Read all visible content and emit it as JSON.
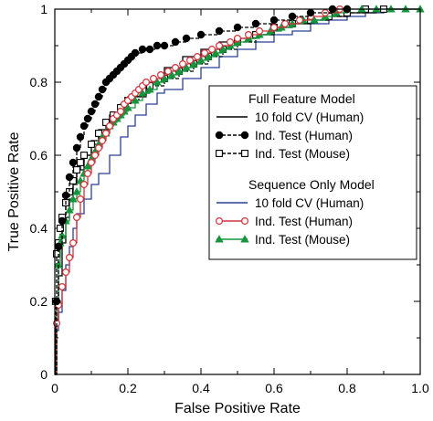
{
  "chart_data": {
    "type": "line",
    "xlabel": "False Positive Rate",
    "ylabel": "True Positive Rate",
    "xlim": [
      0,
      1
    ],
    "ylim": [
      0,
      1
    ],
    "x_ticks": [
      "0",
      "0.2",
      "0.4",
      "0.6",
      "0.8",
      "1.0"
    ],
    "y_ticks": [
      "0",
      "0.2",
      "0.4",
      "0.6",
      "0.8",
      "1"
    ],
    "grid": false,
    "legend_position": "center-right",
    "legend_groups": [
      {
        "heading": "Full Feature Model",
        "entries": [
          0,
          1,
          2
        ]
      },
      {
        "heading": "Sequence Only Model",
        "entries": [
          3,
          4,
          5
        ]
      }
    ],
    "series": [
      {
        "name": "10 fold CV (Human)",
        "color": "#000000",
        "marker": "none",
        "dash": "solid",
        "points": [
          [
            0,
            0
          ],
          [
            0.003,
            0.15
          ],
          [
            0.01,
            0.27
          ],
          [
            0.02,
            0.36
          ],
          [
            0.03,
            0.43
          ],
          [
            0.04,
            0.48
          ],
          [
            0.05,
            0.52
          ],
          [
            0.06,
            0.56
          ],
          [
            0.08,
            0.6
          ],
          [
            0.1,
            0.64
          ],
          [
            0.12,
            0.67
          ],
          [
            0.15,
            0.71
          ],
          [
            0.18,
            0.74
          ],
          [
            0.2,
            0.76
          ],
          [
            0.25,
            0.8
          ],
          [
            0.3,
            0.84
          ],
          [
            0.35,
            0.87
          ],
          [
            0.4,
            0.89
          ],
          [
            0.45,
            0.91
          ],
          [
            0.5,
            0.92
          ],
          [
            0.55,
            0.93
          ],
          [
            0.6,
            0.95
          ],
          [
            0.65,
            0.96
          ],
          [
            0.7,
            0.97
          ],
          [
            0.75,
            0.98
          ],
          [
            0.8,
            0.99
          ],
          [
            0.88,
            1
          ],
          [
            1,
            1
          ]
        ]
      },
      {
        "name": "Ind. Test (Human)",
        "color": "#000000",
        "marker": "filled-circle",
        "dash": "dashed",
        "points": [
          [
            0,
            0
          ],
          [
            0.005,
            0.2
          ],
          [
            0.01,
            0.35
          ],
          [
            0.02,
            0.42
          ],
          [
            0.03,
            0.49
          ],
          [
            0.04,
            0.54
          ],
          [
            0.05,
            0.58
          ],
          [
            0.06,
            0.62
          ],
          [
            0.07,
            0.65
          ],
          [
            0.08,
            0.68
          ],
          [
            0.09,
            0.7
          ],
          [
            0.1,
            0.72
          ],
          [
            0.11,
            0.74
          ],
          [
            0.12,
            0.76
          ],
          [
            0.13,
            0.78
          ],
          [
            0.14,
            0.8
          ],
          [
            0.15,
            0.81
          ],
          [
            0.16,
            0.82
          ],
          [
            0.17,
            0.83
          ],
          [
            0.18,
            0.84
          ],
          [
            0.19,
            0.85
          ],
          [
            0.2,
            0.86
          ],
          [
            0.21,
            0.87
          ],
          [
            0.22,
            0.88
          ],
          [
            0.24,
            0.89
          ],
          [
            0.26,
            0.89
          ],
          [
            0.28,
            0.9
          ],
          [
            0.3,
            0.9
          ],
          [
            0.33,
            0.91
          ],
          [
            0.36,
            0.92
          ],
          [
            0.4,
            0.93
          ],
          [
            0.45,
            0.94
          ],
          [
            0.5,
            0.95
          ],
          [
            0.55,
            0.96
          ],
          [
            0.6,
            0.97
          ],
          [
            0.65,
            0.98
          ],
          [
            0.7,
            0.99
          ],
          [
            0.76,
            1
          ],
          [
            0.8,
            1
          ]
        ]
      },
      {
        "name": "Ind. Test (Mouse)",
        "color": "#000000",
        "marker": "open-square",
        "dash": "dashed",
        "points": [
          [
            0,
            0
          ],
          [
            0.002,
            0.2
          ],
          [
            0.005,
            0.33
          ],
          [
            0.01,
            0.36
          ],
          [
            0.015,
            0.4
          ],
          [
            0.02,
            0.43
          ],
          [
            0.03,
            0.47
          ],
          [
            0.04,
            0.5
          ],
          [
            0.05,
            0.53
          ],
          [
            0.06,
            0.56
          ],
          [
            0.07,
            0.58
          ],
          [
            0.08,
            0.6
          ],
          [
            0.1,
            0.63
          ],
          [
            0.12,
            0.66
          ],
          [
            0.14,
            0.69
          ],
          [
            0.16,
            0.71
          ],
          [
            0.18,
            0.73
          ],
          [
            0.2,
            0.75
          ],
          [
            0.23,
            0.77
          ],
          [
            0.26,
            0.79
          ],
          [
            0.3,
            0.81
          ],
          [
            0.34,
            0.83
          ],
          [
            0.38,
            0.85
          ],
          [
            0.42,
            0.87
          ],
          [
            0.46,
            0.89
          ],
          [
            0.5,
            0.91
          ],
          [
            0.55,
            0.93
          ],
          [
            0.6,
            0.95
          ],
          [
            0.65,
            0.96
          ],
          [
            0.7,
            0.97
          ],
          [
            0.75,
            0.98
          ],
          [
            0.8,
            0.99
          ],
          [
            0.85,
            1
          ],
          [
            0.9,
            1
          ]
        ]
      },
      {
        "name": "10 fold CV (Human)",
        "color": "#2a3f9a",
        "marker": "none",
        "dash": "solid",
        "points": [
          [
            0,
            0
          ],
          [
            0.005,
            0.12
          ],
          [
            0.01,
            0.17
          ],
          [
            0.02,
            0.23
          ],
          [
            0.03,
            0.3
          ],
          [
            0.04,
            0.35
          ],
          [
            0.05,
            0.4
          ],
          [
            0.06,
            0.44
          ],
          [
            0.08,
            0.48
          ],
          [
            0.1,
            0.52
          ],
          [
            0.12,
            0.55
          ],
          [
            0.15,
            0.6
          ],
          [
            0.18,
            0.65
          ],
          [
            0.2,
            0.68
          ],
          [
            0.22,
            0.71
          ],
          [
            0.25,
            0.74
          ],
          [
            0.28,
            0.77
          ],
          [
            0.3,
            0.78
          ],
          [
            0.35,
            0.81
          ],
          [
            0.4,
            0.84
          ],
          [
            0.45,
            0.87
          ],
          [
            0.5,
            0.89
          ],
          [
            0.55,
            0.91
          ],
          [
            0.6,
            0.93
          ],
          [
            0.65,
            0.94
          ],
          [
            0.7,
            0.96
          ],
          [
            0.75,
            0.97
          ],
          [
            0.8,
            0.98
          ],
          [
            0.85,
            0.99
          ],
          [
            0.9,
            1
          ],
          [
            1,
            1
          ]
        ]
      },
      {
        "name": "Ind. Test (Human)",
        "color": "#d0353b",
        "marker": "open-circle",
        "dash": "solid",
        "points": [
          [
            0,
            0
          ],
          [
            0.005,
            0.14
          ],
          [
            0.01,
            0.19
          ],
          [
            0.02,
            0.24
          ],
          [
            0.03,
            0.28
          ],
          [
            0.04,
            0.32
          ],
          [
            0.05,
            0.36
          ],
          [
            0.06,
            0.43
          ],
          [
            0.07,
            0.48
          ],
          [
            0.08,
            0.52
          ],
          [
            0.09,
            0.55
          ],
          [
            0.1,
            0.58
          ],
          [
            0.11,
            0.6
          ],
          [
            0.12,
            0.62
          ],
          [
            0.13,
            0.64
          ],
          [
            0.14,
            0.66
          ],
          [
            0.15,
            0.68
          ],
          [
            0.16,
            0.7
          ],
          [
            0.17,
            0.71
          ],
          [
            0.18,
            0.72
          ],
          [
            0.19,
            0.74
          ],
          [
            0.2,
            0.75
          ],
          [
            0.21,
            0.76
          ],
          [
            0.22,
            0.77
          ],
          [
            0.23,
            0.78
          ],
          [
            0.24,
            0.79
          ],
          [
            0.25,
            0.8
          ],
          [
            0.27,
            0.81
          ],
          [
            0.29,
            0.82
          ],
          [
            0.31,
            0.83
          ],
          [
            0.33,
            0.84
          ],
          [
            0.35,
            0.85
          ],
          [
            0.37,
            0.86
          ],
          [
            0.39,
            0.87
          ],
          [
            0.41,
            0.88
          ],
          [
            0.43,
            0.89
          ],
          [
            0.45,
            0.9
          ],
          [
            0.48,
            0.91
          ],
          [
            0.5,
            0.92
          ],
          [
            0.53,
            0.93
          ],
          [
            0.56,
            0.94
          ],
          [
            0.6,
            0.95
          ],
          [
            0.63,
            0.96
          ],
          [
            0.67,
            0.97
          ],
          [
            0.7,
            0.98
          ],
          [
            0.74,
            0.99
          ],
          [
            0.78,
            1
          ]
        ]
      },
      {
        "name": "Ind. Test (Mouse)",
        "color": "#17953d",
        "marker": "filled-triangle",
        "dash": "solid",
        "points": [
          [
            0,
            0
          ],
          [
            0.005,
            0.2
          ],
          [
            0.01,
            0.3
          ],
          [
            0.015,
            0.36
          ],
          [
            0.02,
            0.38
          ],
          [
            0.03,
            0.42
          ],
          [
            0.04,
            0.45
          ],
          [
            0.05,
            0.48
          ],
          [
            0.06,
            0.5
          ],
          [
            0.07,
            0.53
          ],
          [
            0.08,
            0.55
          ],
          [
            0.09,
            0.57
          ],
          [
            0.1,
            0.59
          ],
          [
            0.11,
            0.61
          ],
          [
            0.12,
            0.63
          ],
          [
            0.13,
            0.65
          ],
          [
            0.14,
            0.66
          ],
          [
            0.15,
            0.68
          ],
          [
            0.16,
            0.69
          ],
          [
            0.17,
            0.7
          ],
          [
            0.18,
            0.71
          ],
          [
            0.19,
            0.72
          ],
          [
            0.2,
            0.73
          ],
          [
            0.22,
            0.75
          ],
          [
            0.24,
            0.77
          ],
          [
            0.26,
            0.78
          ],
          [
            0.28,
            0.8
          ],
          [
            0.3,
            0.81
          ],
          [
            0.32,
            0.82
          ],
          [
            0.34,
            0.83
          ],
          [
            0.36,
            0.84
          ],
          [
            0.38,
            0.85
          ],
          [
            0.4,
            0.86
          ],
          [
            0.42,
            0.87
          ],
          [
            0.44,
            0.88
          ],
          [
            0.46,
            0.89
          ],
          [
            0.48,
            0.9
          ],
          [
            0.5,
            0.91
          ],
          [
            0.53,
            0.92
          ],
          [
            0.56,
            0.93
          ],
          [
            0.59,
            0.94
          ],
          [
            0.62,
            0.95
          ],
          [
            0.65,
            0.96
          ],
          [
            0.68,
            0.97
          ],
          [
            0.71,
            0.97
          ],
          [
            0.74,
            0.98
          ],
          [
            0.77,
            0.99
          ],
          [
            0.8,
            1
          ],
          [
            0.84,
            1
          ],
          [
            0.88,
            1
          ],
          [
            0.92,
            1
          ],
          [
            0.96,
            1
          ],
          [
            1,
            1
          ]
        ]
      }
    ]
  }
}
